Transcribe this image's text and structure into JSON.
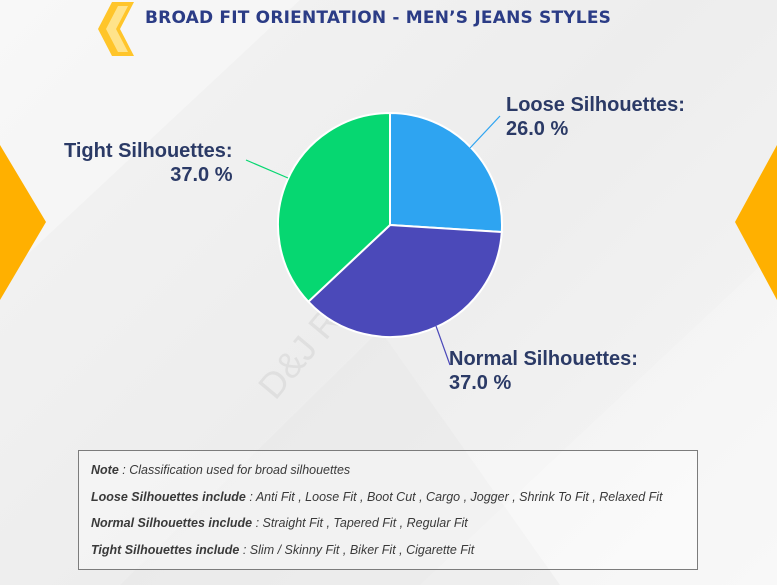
{
  "title": "BROAD FIT ORIENTATION - MEN’S JEANS STYLES",
  "colors": {
    "title": "#2b3c86",
    "accent": "#ffb000"
  },
  "chart_data": {
    "type": "pie",
    "title": "BROAD FIT ORIENTATION - MEN’S JEANS STYLES",
    "slices": [
      {
        "name": "Loose Silhouettes:",
        "value": 26.0,
        "value_label": "26.0 %",
        "color": "#2ea4f1"
      },
      {
        "name": "Normal Silhouettes:",
        "value": 37.0,
        "value_label": "37.0 %",
        "color": "#4b49b9"
      },
      {
        "name": "Tight Silhouettes:",
        "value": 37.0,
        "value_label": "37.0 %",
        "color": "#06d771"
      }
    ]
  },
  "note": {
    "line1_label": "Note",
    "line1_text": " : Classification used for broad silhouettes",
    "line2_label": "Loose Silhouettes include",
    "line2_text": " : Anti Fit , Loose Fit , Boot Cut , Cargo , Jogger , Shrink To Fit , Relaxed Fit",
    "line3_label": "Normal Silhouettes include",
    "line3_text": " : Straight Fit , Tapered Fit , Regular Fit",
    "line4_label": "Tight Silhouettes include",
    "line4_text": " : Slim / Skinny Fit , Biker Fit , Cigarette Fit"
  },
  "watermark": "D&J Reports"
}
